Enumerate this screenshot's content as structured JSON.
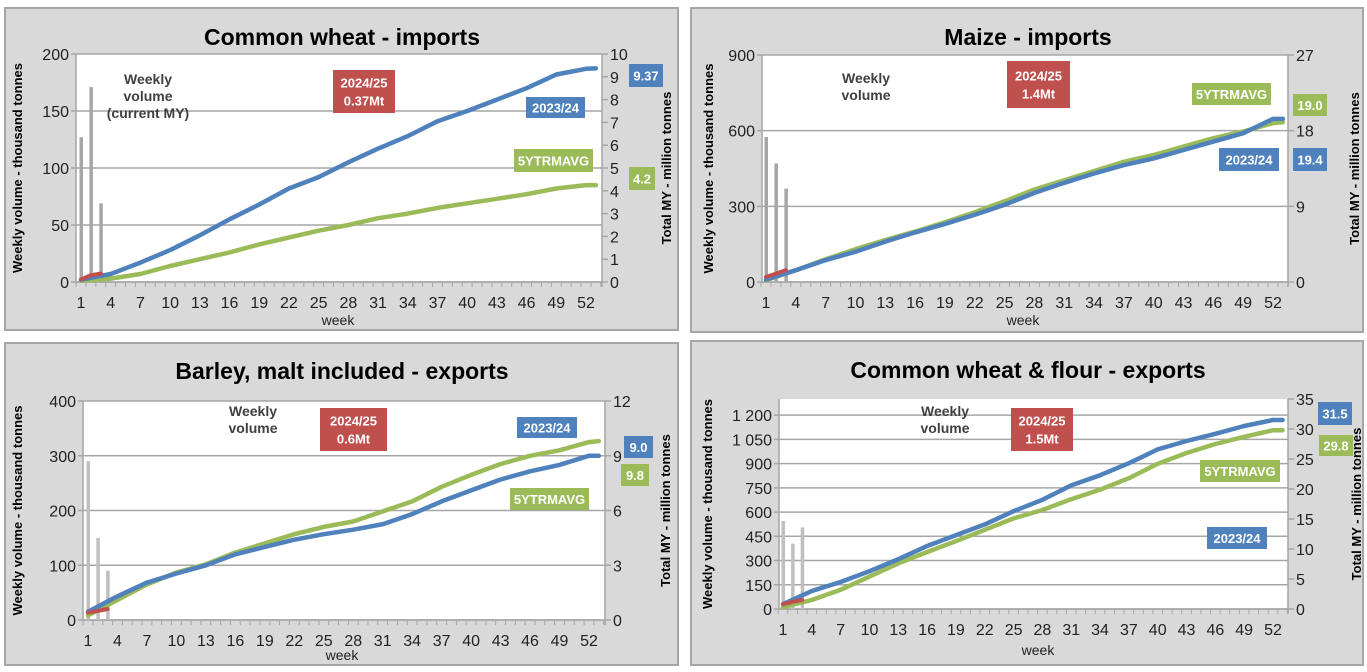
{
  "colors": {
    "panel_bg": "#d9d9d9",
    "panel_border": "#a6a6a6",
    "grid": "#a6a6a6",
    "current_year": "#c0504d",
    "previous_year": "#4f81bd",
    "five_year_avg": "#9bbb59",
    "weekly_bars": "#a6a6a6"
  },
  "chart_data": [
    {
      "type": "line",
      "title": "Common wheat - imports",
      "xlabel": "week",
      "ylabel_left": "Weekly volume - thousand tonnes",
      "ylabel_right": "Total MY - million tonnes",
      "ylim_left": [
        0,
        200
      ],
      "ylim_right": [
        0,
        10
      ],
      "yticks_left": [
        "0",
        "50",
        "100",
        "150",
        "200"
      ],
      "yticks_right": [
        "0",
        "1",
        "2",
        "3",
        "4",
        "5",
        "6",
        "7",
        "8",
        "9",
        "10"
      ],
      "xticks": [
        "1",
        "4",
        "7",
        "10",
        "13",
        "16",
        "19",
        "22",
        "25",
        "28",
        "31",
        "34",
        "37",
        "40",
        "43",
        "46",
        "49",
        "52"
      ],
      "grid": true,
      "weekly_bars": {
        "label": [
          "Weekly",
          "volume",
          "(current MY)"
        ],
        "weeks": [
          1,
          2,
          3
        ],
        "values": [
          127,
          171,
          69
        ]
      },
      "series": [
        {
          "name": "2024/25",
          "axis": "right",
          "weeks": [
            1,
            2,
            3
          ],
          "values": [
            0.12,
            0.3,
            0.37
          ]
        },
        {
          "name": "2023/24",
          "axis": "right",
          "weeks": [
            1,
            4,
            7,
            10,
            13,
            16,
            19,
            22,
            25,
            28,
            31,
            34,
            37,
            40,
            43,
            46,
            49,
            52,
            53
          ],
          "values": [
            0.1,
            0.35,
            0.85,
            1.4,
            2.05,
            2.75,
            3.4,
            4.1,
            4.6,
            5.25,
            5.85,
            6.4,
            7.05,
            7.5,
            8.0,
            8.5,
            9.1,
            9.35,
            9.37
          ]
        },
        {
          "name": "5YTRMAVG",
          "axis": "right",
          "weeks": [
            1,
            4,
            7,
            10,
            13,
            16,
            19,
            22,
            25,
            28,
            31,
            34,
            37,
            40,
            43,
            46,
            49,
            52,
            53
          ],
          "values": [
            0.05,
            0.15,
            0.35,
            0.7,
            1.0,
            1.3,
            1.65,
            1.95,
            2.25,
            2.5,
            2.8,
            3.0,
            3.25,
            3.45,
            3.65,
            3.85,
            4.1,
            4.25,
            4.25
          ]
        }
      ],
      "annotations": {
        "current": [
          "2024/25",
          "0.37Mt"
        ],
        "previous": "2023/24",
        "average": "5YTRMAVG",
        "previous_total": "9.37",
        "average_total": "4.2"
      }
    },
    {
      "type": "line",
      "title": "Maize - imports",
      "xlabel": "week",
      "ylabel_left": "Weekly volume - thousand tonnes",
      "ylabel_right": "Total MY - million tonnes",
      "ylim_left": [
        0,
        900
      ],
      "ylim_right": [
        0,
        27
      ],
      "yticks_left": [
        "0",
        "300",
        "600",
        "900"
      ],
      "yticks_right": [
        "0",
        "9",
        "18",
        "27"
      ],
      "xticks": [
        "1",
        "4",
        "7",
        "10",
        "13",
        "16",
        "19",
        "22",
        "25",
        "28",
        "31",
        "34",
        "37",
        "40",
        "43",
        "46",
        "49",
        "52"
      ],
      "grid": true,
      "weekly_bars": {
        "label": [
          "Weekly",
          "volume"
        ],
        "weeks": [
          1,
          2,
          3
        ],
        "values": [
          575,
          470,
          370
        ]
      },
      "series": [
        {
          "name": "2024/25",
          "axis": "right",
          "weeks": [
            1,
            2,
            3
          ],
          "values": [
            0.6,
            1.0,
            1.4
          ]
        },
        {
          "name": "2023/24",
          "axis": "right",
          "weeks": [
            1,
            4,
            7,
            10,
            13,
            16,
            19,
            22,
            25,
            28,
            31,
            34,
            37,
            40,
            43,
            46,
            49,
            52,
            53
          ],
          "values": [
            0.3,
            1.4,
            2.6,
            3.6,
            4.8,
            5.9,
            6.9,
            8.0,
            9.2,
            10.6,
            11.8,
            12.9,
            13.9,
            14.7,
            15.7,
            16.7,
            17.7,
            19.4,
            19.4
          ]
        },
        {
          "name": "5YTRMAVG",
          "axis": "right",
          "weeks": [
            1,
            4,
            7,
            10,
            13,
            16,
            19,
            22,
            25,
            28,
            31,
            34,
            37,
            40,
            43,
            46,
            49,
            52,
            53
          ],
          "values": [
            0.2,
            1.4,
            2.7,
            3.9,
            5.0,
            6.0,
            7.1,
            8.3,
            9.6,
            11.0,
            12.1,
            13.2,
            14.3,
            15.1,
            16.1,
            17.1,
            17.9,
            18.9,
            19.0
          ]
        }
      ],
      "annotations": {
        "current": [
          "2024/25",
          "1.4Mt"
        ],
        "previous": "2023/24",
        "average": "5YTRMAVG",
        "previous_total": "19.4",
        "average_total": "19.0"
      }
    },
    {
      "type": "line",
      "title": "Barley, malt included - exports",
      "xlabel": "week",
      "ylabel_left": "Weekly volume - thousand tonnes",
      "ylabel_right": "Total MY - million tonnes",
      "ylim_left": [
        0,
        400
      ],
      "ylim_right": [
        0,
        12
      ],
      "yticks_left": [
        "0",
        "100",
        "200",
        "300",
        "400"
      ],
      "yticks_right": [
        "0",
        "3",
        "6",
        "9",
        "12"
      ],
      "xticks": [
        "1",
        "4",
        "7",
        "10",
        "13",
        "16",
        "19",
        "22",
        "25",
        "28",
        "31",
        "34",
        "37",
        "40",
        "43",
        "46",
        "49",
        "52"
      ],
      "grid": true,
      "weekly_bars": {
        "label": [
          "Weekly",
          "volume"
        ],
        "weeks": [
          1,
          2,
          3
        ],
        "values": [
          290,
          150,
          90
        ]
      },
      "series": [
        {
          "name": "2024/25",
          "axis": "right",
          "weeks": [
            1,
            2,
            3
          ],
          "values": [
            0.4,
            0.5,
            0.6
          ]
        },
        {
          "name": "2023/24",
          "axis": "right",
          "weeks": [
            1,
            4,
            7,
            10,
            13,
            16,
            19,
            22,
            25,
            28,
            31,
            34,
            37,
            40,
            43,
            46,
            49,
            52,
            53
          ],
          "values": [
            0.45,
            1.3,
            2.05,
            2.55,
            3.0,
            3.6,
            4.0,
            4.4,
            4.7,
            4.95,
            5.25,
            5.8,
            6.5,
            7.1,
            7.7,
            8.15,
            8.5,
            9.0,
            9.0
          ]
        },
        {
          "name": "5YTRMAVG",
          "axis": "right",
          "weeks": [
            1,
            4,
            7,
            10,
            13,
            16,
            19,
            22,
            25,
            28,
            31,
            34,
            37,
            40,
            43,
            46,
            49,
            52,
            53
          ],
          "values": [
            0.25,
            1.1,
            1.95,
            2.6,
            3.05,
            3.7,
            4.2,
            4.7,
            5.1,
            5.4,
            5.95,
            6.5,
            7.3,
            7.95,
            8.55,
            9.0,
            9.3,
            9.75,
            9.8
          ]
        }
      ],
      "annotations": {
        "current": [
          "2024/25",
          "0.6Mt"
        ],
        "previous": "2023/24",
        "average": "5YTRMAVG",
        "previous_total": "9.0",
        "average_total": "9.8"
      }
    },
    {
      "type": "line",
      "title": "Common wheat & flour - exports",
      "xlabel": "week",
      "ylabel_left": "Weekly volume - thousand tonnes",
      "ylabel_right": "Total MY - million tonnes",
      "ylim_left": [
        0,
        1300
      ],
      "ylim_right": [
        0,
        35
      ],
      "yticks_left": [
        "0",
        "150",
        "300",
        "450",
        "600",
        "750",
        "900",
        "1 050",
        "1 200"
      ],
      "yticks_right": [
        "0",
        "5",
        "10",
        "15",
        "20",
        "25",
        "30",
        "35"
      ],
      "xticks": [
        "1",
        "4",
        "7",
        "10",
        "13",
        "16",
        "19",
        "22",
        "25",
        "28",
        "31",
        "34",
        "37",
        "40",
        "43",
        "46",
        "49",
        "52"
      ],
      "grid": true,
      "weekly_bars": {
        "label": [
          "Weekly",
          "volume"
        ],
        "weeks": [
          1,
          2,
          3
        ],
        "values": [
          545,
          405,
          505
        ]
      },
      "series": [
        {
          "name": "2024/25",
          "axis": "right",
          "weeks": [
            1,
            2,
            3
          ],
          "values": [
            0.8,
            1.2,
            1.5
          ]
        },
        {
          "name": "2023/24",
          "axis": "right",
          "weeks": [
            1,
            4,
            7,
            10,
            13,
            16,
            19,
            22,
            25,
            28,
            31,
            34,
            37,
            40,
            43,
            46,
            49,
            52,
            53
          ],
          "values": [
            0.8,
            3.0,
            4.5,
            6.3,
            8.3,
            10.5,
            12.3,
            14.1,
            16.3,
            18.2,
            20.6,
            22.3,
            24.3,
            26.6,
            28.0,
            29.2,
            30.5,
            31.5,
            31.5
          ]
        },
        {
          "name": "5YTRMAVG",
          "axis": "right",
          "weeks": [
            1,
            4,
            7,
            10,
            13,
            16,
            19,
            22,
            25,
            28,
            31,
            34,
            37,
            40,
            43,
            46,
            49,
            52,
            53
          ],
          "values": [
            0.3,
            1.5,
            3.2,
            5.4,
            7.6,
            9.5,
            11.3,
            13.2,
            15.1,
            16.5,
            18.3,
            19.9,
            21.8,
            24.2,
            26.0,
            27.5,
            28.7,
            29.8,
            29.8
          ]
        }
      ],
      "annotations": {
        "current": [
          "2024/25",
          "1.5Mt"
        ],
        "previous": "2023/24",
        "average": "5YTRMAVG",
        "previous_total": "31.5",
        "average_total": "29.8"
      }
    }
  ]
}
